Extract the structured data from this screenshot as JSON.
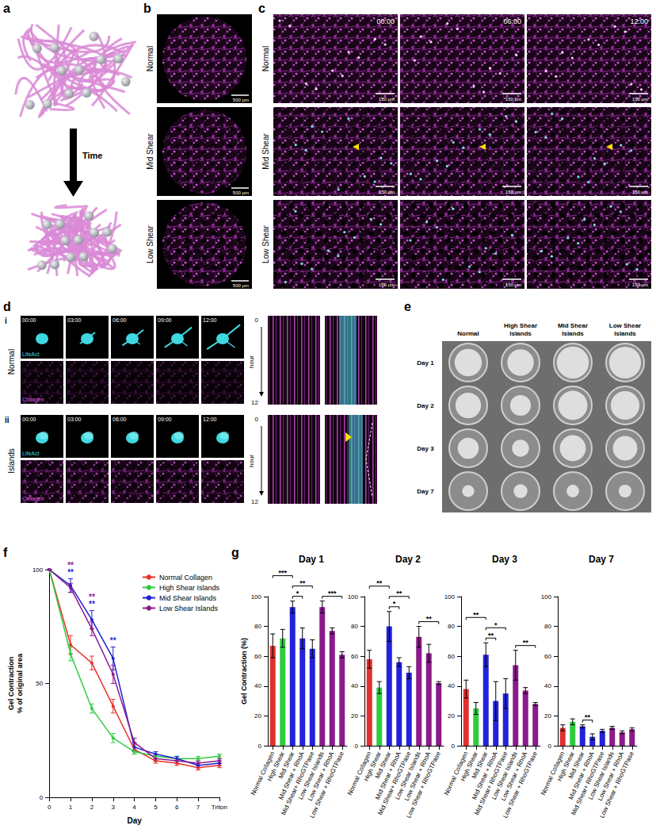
{
  "panels": {
    "a": {
      "letter": "a",
      "arrow_label": "Time"
    },
    "b": {
      "letter": "b",
      "rows": [
        "Normal",
        "Mid Shear",
        "Low Shear"
      ],
      "scale_bar": "500 μm"
    },
    "c": {
      "letter": "c",
      "rows": [
        "Normal",
        "Mid Shear",
        "Low Shear"
      ],
      "times": [
        "00:00",
        "06:00",
        "12:00"
      ],
      "scale_bar": "150 μm"
    },
    "d": {
      "letter": "d",
      "rows": [
        {
          "numeral": "i",
          "label": "Normal"
        },
        {
          "numeral": "ii",
          "label": "Islands"
        }
      ],
      "channels": [
        "LifeAct",
        "Collagen"
      ],
      "times": [
        "00:00",
        "03:00",
        "06:00",
        "09:00",
        "12:00"
      ],
      "kymograph_axis": {
        "start": "0",
        "label": "hour",
        "end": "12"
      }
    },
    "e": {
      "letter": "e",
      "columns": [
        "Normal",
        "High Shear Islands",
        "Mid Shear Islands",
        "Low Shear Islands"
      ],
      "rows": [
        "Day 1",
        "Day 2",
        "Day 3",
        "Day 7"
      ]
    },
    "f": {
      "letter": "f"
    },
    "g": {
      "letter": "g"
    }
  },
  "chart_data": [
    {
      "type": "line",
      "x_label": "Day",
      "y_label": "Gel Contraction\n% of original area",
      "categories": [
        "0",
        "1",
        "2",
        "3",
        "4",
        "5",
        "6",
        "7",
        "Triton"
      ],
      "ylim": [
        0,
        100
      ],
      "yticks": [
        0,
        50,
        100
      ],
      "grid": false,
      "legend": "top-right",
      "marker": "circle",
      "series": [
        {
          "name": "Normal Collagen",
          "color": "#e8312a",
          "values": [
            100,
            67,
            59,
            40,
            21,
            16,
            15,
            13,
            14
          ],
          "errors": [
            0,
            4,
            3,
            3,
            2,
            1,
            1,
            1,
            1
          ]
        },
        {
          "name": "High Shear Islands",
          "color": "#2ecc40",
          "values": [
            100,
            63,
            39,
            26,
            20,
            18,
            17,
            17,
            18
          ],
          "errors": [
            0,
            3,
            2,
            2,
            1,
            1,
            1,
            1,
            1
          ]
        },
        {
          "name": "Mid Shear Islands",
          "color": "#1f1fd6",
          "values": [
            100,
            93,
            78,
            61,
            22,
            19,
            17,
            14,
            15
          ],
          "errors": [
            0,
            3,
            4,
            5,
            2,
            1,
            1,
            1,
            1
          ]
        },
        {
          "name": "Low Shear Islands",
          "color": "#8b1a8b",
          "values": [
            100,
            92,
            74,
            54,
            24,
            17,
            16,
            15,
            16
          ],
          "errors": [
            0,
            2,
            3,
            4,
            2,
            1,
            1,
            1,
            1
          ]
        }
      ],
      "annotations": [
        {
          "x": "1",
          "text": "**",
          "color": "#1f1fd6"
        },
        {
          "x": "1",
          "text": "**",
          "color": "#8b1a8b"
        },
        {
          "x": "2",
          "text": "**",
          "color": "#1f1fd6"
        },
        {
          "x": "2",
          "text": "**",
          "color": "#8b1a8b"
        },
        {
          "x": "3",
          "text": "**",
          "color": "#1f1fd6"
        }
      ]
    },
    {
      "type": "bar",
      "y_label": "Gel Contraction (%)",
      "categories": [
        "Normal Collagen",
        "High Shear",
        "Mid Shear",
        "Mid Shear + RhoA",
        "Mid Shear+ RhoGTPase",
        "Low Shear Islands",
        "Low Shear + RhoA",
        "Low Shear + RhoGTPase"
      ],
      "colors": [
        "#e03030",
        "#2ecc40",
        "#2222dd",
        "#2222dd",
        "#2222dd",
        "#8b1a8b",
        "#8b1a8b",
        "#8b1a8b"
      ],
      "ylim": [
        0,
        100
      ],
      "yticks": [
        0,
        20,
        40,
        60,
        80,
        100
      ],
      "grid": false,
      "panels": [
        {
          "title": "Day 1",
          "values": [
            67,
            72,
            93,
            72,
            65,
            93,
            77,
            61
          ],
          "errors": [
            8,
            6,
            4,
            7,
            6,
            4,
            2,
            2
          ],
          "significance": [
            {
              "from": "Mid Shear",
              "to": "Mid Shear + RhoA",
              "label": "*"
            },
            {
              "from": "Mid Shear",
              "to": "Mid Shear+ RhoGTPase",
              "label": "**"
            },
            {
              "from": "Normal Collagen",
              "to": "Mid Shear",
              "label": "***"
            },
            {
              "from": "Low Shear Islands",
              "to": "Low Shear + RhoGTPase",
              "label": "***"
            }
          ]
        },
        {
          "title": "Day 2",
          "values": [
            58,
            39,
            80,
            56,
            49,
            73,
            62,
            42
          ],
          "errors": [
            6,
            4,
            10,
            3,
            4,
            7,
            6,
            1
          ],
          "significance": [
            {
              "from": "Mid Shear",
              "to": "Mid Shear + RhoA",
              "label": "*"
            },
            {
              "from": "Mid Shear",
              "to": "Mid Shear+ RhoGTPase",
              "label": "**"
            },
            {
              "from": "Normal Collagen",
              "to": "Mid Shear",
              "label": "**"
            },
            {
              "from": "Low Shear Islands",
              "to": "Low Shear + RhoGTPase",
              "label": "**"
            }
          ]
        },
        {
          "title": "Day 3",
          "values": [
            38,
            25,
            61,
            30,
            35,
            54,
            37,
            28
          ],
          "errors": [
            6,
            4,
            8,
            13,
            10,
            10,
            2,
            1
          ],
          "significance": [
            {
              "from": "Mid Shear",
              "to": "Mid Shear + RhoA",
              "label": "**"
            },
            {
              "from": "Mid Shear",
              "to": "Mid Shear+ RhoGTPase",
              "label": "*"
            },
            {
              "from": "Normal Collagen",
              "to": "Mid Shear",
              "label": "**"
            },
            {
              "from": "Low Shear Islands",
              "to": "Low Shear + RhoGTPase",
              "label": "**"
            }
          ]
        },
        {
          "title": "Day 7",
          "values": [
            12,
            16,
            13,
            6,
            10,
            12,
            9,
            11
          ],
          "errors": [
            2,
            2,
            1,
            2,
            1,
            1,
            1,
            1
          ],
          "significance": [
            {
              "from": "Mid Shear",
              "to": "Mid Shear + RhoA",
              "label": "**"
            }
          ]
        }
      ]
    }
  ]
}
